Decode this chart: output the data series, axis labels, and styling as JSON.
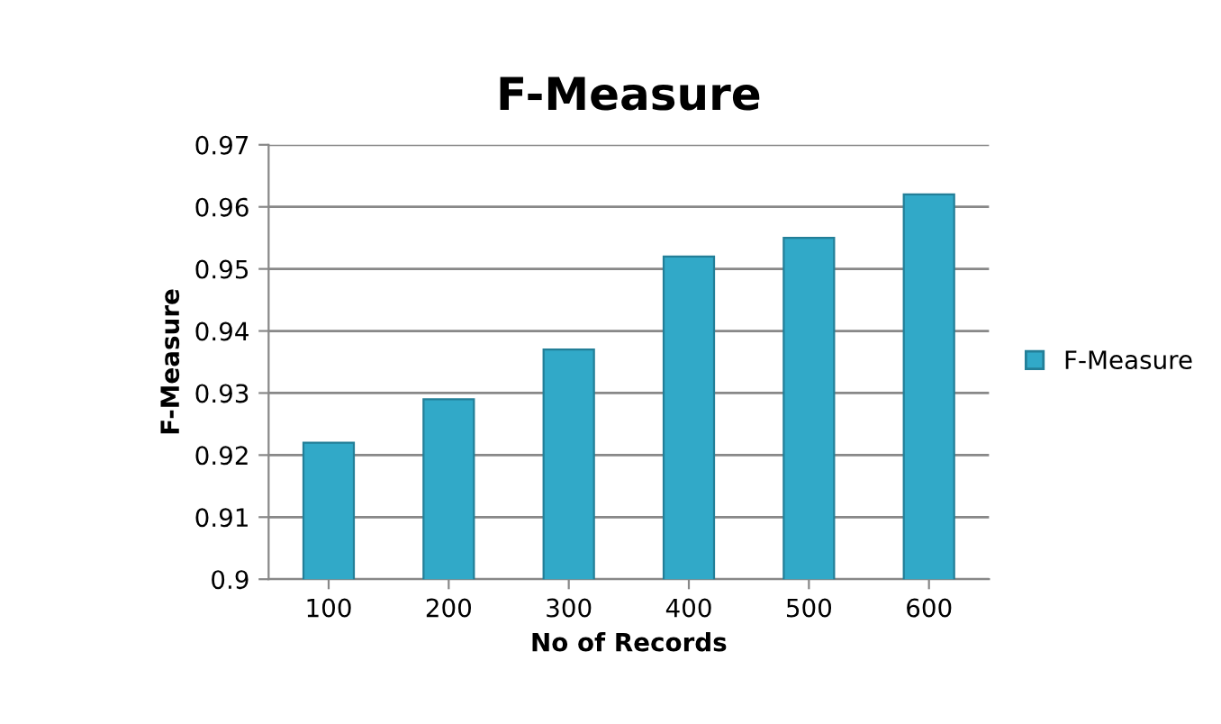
{
  "chart_data": {
    "type": "bar",
    "title": "F-Measure",
    "xlabel": "No of Records",
    "ylabel": "F-Measure",
    "categories": [
      "100",
      "200",
      "300",
      "400",
      "500",
      "600"
    ],
    "series": [
      {
        "name": "F-Measure",
        "color": "#31a9c8",
        "values": [
          0.922,
          0.929,
          0.937,
          0.952,
          0.955,
          0.962
        ]
      }
    ],
    "ylim": [
      0.9,
      0.97
    ],
    "yticks": [
      {
        "value": 0.9,
        "label": "0.9"
      },
      0.91,
      0.92,
      0.93,
      0.94,
      0.95,
      0.96,
      0.97
    ],
    "grid": "y",
    "legend": "right"
  }
}
